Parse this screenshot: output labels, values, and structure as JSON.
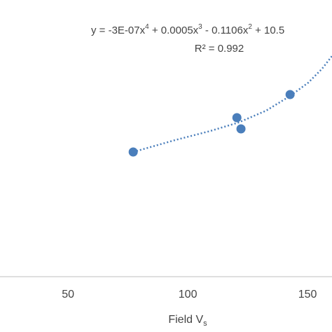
{
  "chart_data": {
    "type": "scatter",
    "equation": [
      "y = -3E-07x",
      "4",
      " + 0.0005x",
      "3",
      " - 0.1106x",
      "2",
      " + 10.5"
    ],
    "r_squared": "R² = 0.992",
    "x_label": [
      "Field V",
      "s"
    ],
    "xlim": [
      21.6,
      160.2
    ],
    "xticks": [
      50,
      100,
      150
    ],
    "ylim": [
      0,
      395
    ],
    "series": [
      {
        "color": "#4a7ebb",
        "x": [
          77.2,
          120.5,
          122.2,
          142.7
        ],
        "values": [
          178,
          227,
          211,
          260
        ]
      }
    ],
    "trendline": {
      "color": "#4a7ebb",
      "style": "dotted",
      "x": [
        77.2,
        94.7,
        109.4,
        121.1,
        132.7,
        142.7,
        150.3,
        156.1,
        160.2
      ],
      "values": [
        178,
        195,
        208,
        220,
        237,
        258,
        277,
        297,
        315
      ]
    }
  }
}
